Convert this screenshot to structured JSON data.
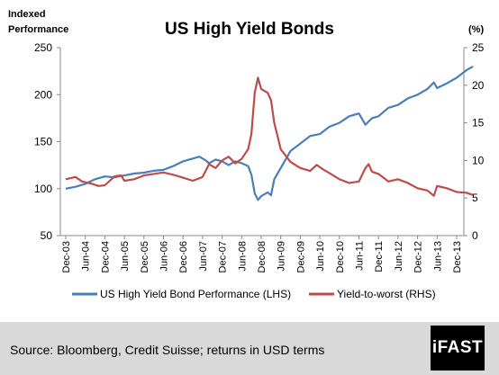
{
  "chart_data": {
    "type": "line",
    "title": "US High Yield Bonds",
    "y_left_label_line1": "Indexed",
    "y_left_label_line2": "Performance",
    "y_right_label": "(%)",
    "y_left_lim": [
      50,
      250
    ],
    "y_left_ticks": [
      "50",
      "100",
      "150",
      "200",
      "250"
    ],
    "y_right_lim": [
      0,
      25
    ],
    "y_right_ticks": [
      "0",
      "5",
      "10",
      "15",
      "20",
      "25"
    ],
    "x_ticks": [
      "Dec-03",
      "Jun-04",
      "Dec-04",
      "Jun-05",
      "Dec-05",
      "Jun-06",
      "Dec-06",
      "Jun-07",
      "Dec-07",
      "Jun-08",
      "Dec-08",
      "Jun-09",
      "Dec-09",
      "Jun-10",
      "Dec-10",
      "Jun-11",
      "Dec-11",
      "Jun-12",
      "Dec-12",
      "Jun-13",
      "Dec-13"
    ],
    "grid": false,
    "legend_position": "bottom",
    "series": [
      {
        "name": "US High Yield Bond Performance (LHS)",
        "axis": "left",
        "color": "#4a7ebb",
        "points": [
          [
            "2003-12",
            100
          ],
          [
            "2004-03",
            102
          ],
          [
            "2004-06",
            105
          ],
          [
            "2004-09",
            110
          ],
          [
            "2004-12",
            113
          ],
          [
            "2005-03",
            112
          ],
          [
            "2005-06",
            114
          ],
          [
            "2005-09",
            116
          ],
          [
            "2005-12",
            117
          ],
          [
            "2006-03",
            119
          ],
          [
            "2006-06",
            120
          ],
          [
            "2006-09",
            124
          ],
          [
            "2006-12",
            129
          ],
          [
            "2007-03",
            132
          ],
          [
            "2007-05",
            134
          ],
          [
            "2007-07",
            130
          ],
          [
            "2007-08",
            127
          ],
          [
            "2007-10",
            131
          ],
          [
            "2007-12",
            129
          ],
          [
            "2008-02",
            125
          ],
          [
            "2008-04",
            129
          ],
          [
            "2008-06",
            127
          ],
          [
            "2008-08",
            124
          ],
          [
            "2008-09",
            115
          ],
          [
            "2008-10",
            95
          ],
          [
            "2008-11",
            88
          ],
          [
            "2008-12",
            92
          ],
          [
            "2009-02",
            96
          ],
          [
            "2009-03",
            93
          ],
          [
            "2009-04",
            110
          ],
          [
            "2009-06",
            122
          ],
          [
            "2009-09",
            140
          ],
          [
            "2009-12",
            148
          ],
          [
            "2010-03",
            156
          ],
          [
            "2010-06",
            158
          ],
          [
            "2010-09",
            166
          ],
          [
            "2010-12",
            170
          ],
          [
            "2011-03",
            177
          ],
          [
            "2011-06",
            180
          ],
          [
            "2011-08",
            168
          ],
          [
            "2011-10",
            175
          ],
          [
            "2011-12",
            177
          ],
          [
            "2012-03",
            186
          ],
          [
            "2012-06",
            189
          ],
          [
            "2012-09",
            196
          ],
          [
            "2012-12",
            200
          ],
          [
            "2013-03",
            206
          ],
          [
            "2013-05",
            213
          ],
          [
            "2013-06",
            207
          ],
          [
            "2013-09",
            212
          ],
          [
            "2013-12",
            218
          ],
          [
            "2014-03",
            226
          ],
          [
            "2014-05",
            230
          ]
        ]
      },
      {
        "name": "Yield-to-worst (RHS)",
        "axis": "right",
        "color": "#be4b48",
        "points": [
          [
            "2003-12",
            7.5
          ],
          [
            "2004-03",
            7.8
          ],
          [
            "2004-05",
            7.2
          ],
          [
            "2004-08",
            6.9
          ],
          [
            "2004-10",
            6.6
          ],
          [
            "2004-12",
            6.7
          ],
          [
            "2005-03",
            7.9
          ],
          [
            "2005-05",
            8.0
          ],
          [
            "2005-06",
            7.3
          ],
          [
            "2005-09",
            7.5
          ],
          [
            "2005-12",
            8.0
          ],
          [
            "2006-03",
            8.2
          ],
          [
            "2006-06",
            8.4
          ],
          [
            "2006-09",
            8.1
          ],
          [
            "2006-12",
            7.7
          ],
          [
            "2007-03",
            7.3
          ],
          [
            "2007-06",
            7.8
          ],
          [
            "2007-08",
            9.5
          ],
          [
            "2007-10",
            9.0
          ],
          [
            "2007-12",
            10.0
          ],
          [
            "2008-02",
            10.5
          ],
          [
            "2008-04",
            9.6
          ],
          [
            "2008-06",
            10.2
          ],
          [
            "2008-08",
            11.5
          ],
          [
            "2008-09",
            13.5
          ],
          [
            "2008-10",
            19.0
          ],
          [
            "2008-11",
            21.0
          ],
          [
            "2008-12",
            19.5
          ],
          [
            "2009-02",
            19.0
          ],
          [
            "2009-03",
            18.0
          ],
          [
            "2009-04",
            15.0
          ],
          [
            "2009-06",
            11.5
          ],
          [
            "2009-09",
            9.8
          ],
          [
            "2009-12",
            9.0
          ],
          [
            "2010-03",
            8.6
          ],
          [
            "2010-05",
            9.4
          ],
          [
            "2010-07",
            8.8
          ],
          [
            "2010-09",
            8.3
          ],
          [
            "2010-12",
            7.5
          ],
          [
            "2011-03",
            7.0
          ],
          [
            "2011-06",
            7.2
          ],
          [
            "2011-08",
            9.0
          ],
          [
            "2011-09",
            9.5
          ],
          [
            "2011-10",
            8.5
          ],
          [
            "2011-12",
            8.2
          ],
          [
            "2012-03",
            7.2
          ],
          [
            "2012-06",
            7.5
          ],
          [
            "2012-09",
            7.0
          ],
          [
            "2012-12",
            6.3
          ],
          [
            "2013-03",
            6.0
          ],
          [
            "2013-05",
            5.3
          ],
          [
            "2013-06",
            6.6
          ],
          [
            "2013-09",
            6.3
          ],
          [
            "2013-12",
            5.8
          ],
          [
            "2014-03",
            5.7
          ],
          [
            "2014-05",
            5.4
          ]
        ]
      }
    ]
  },
  "footer": {
    "source": "Source: Bloomberg, Credit Suisse; returns in USD terms",
    "logo": "iFAST",
    "background": "#d9d9d9"
  }
}
